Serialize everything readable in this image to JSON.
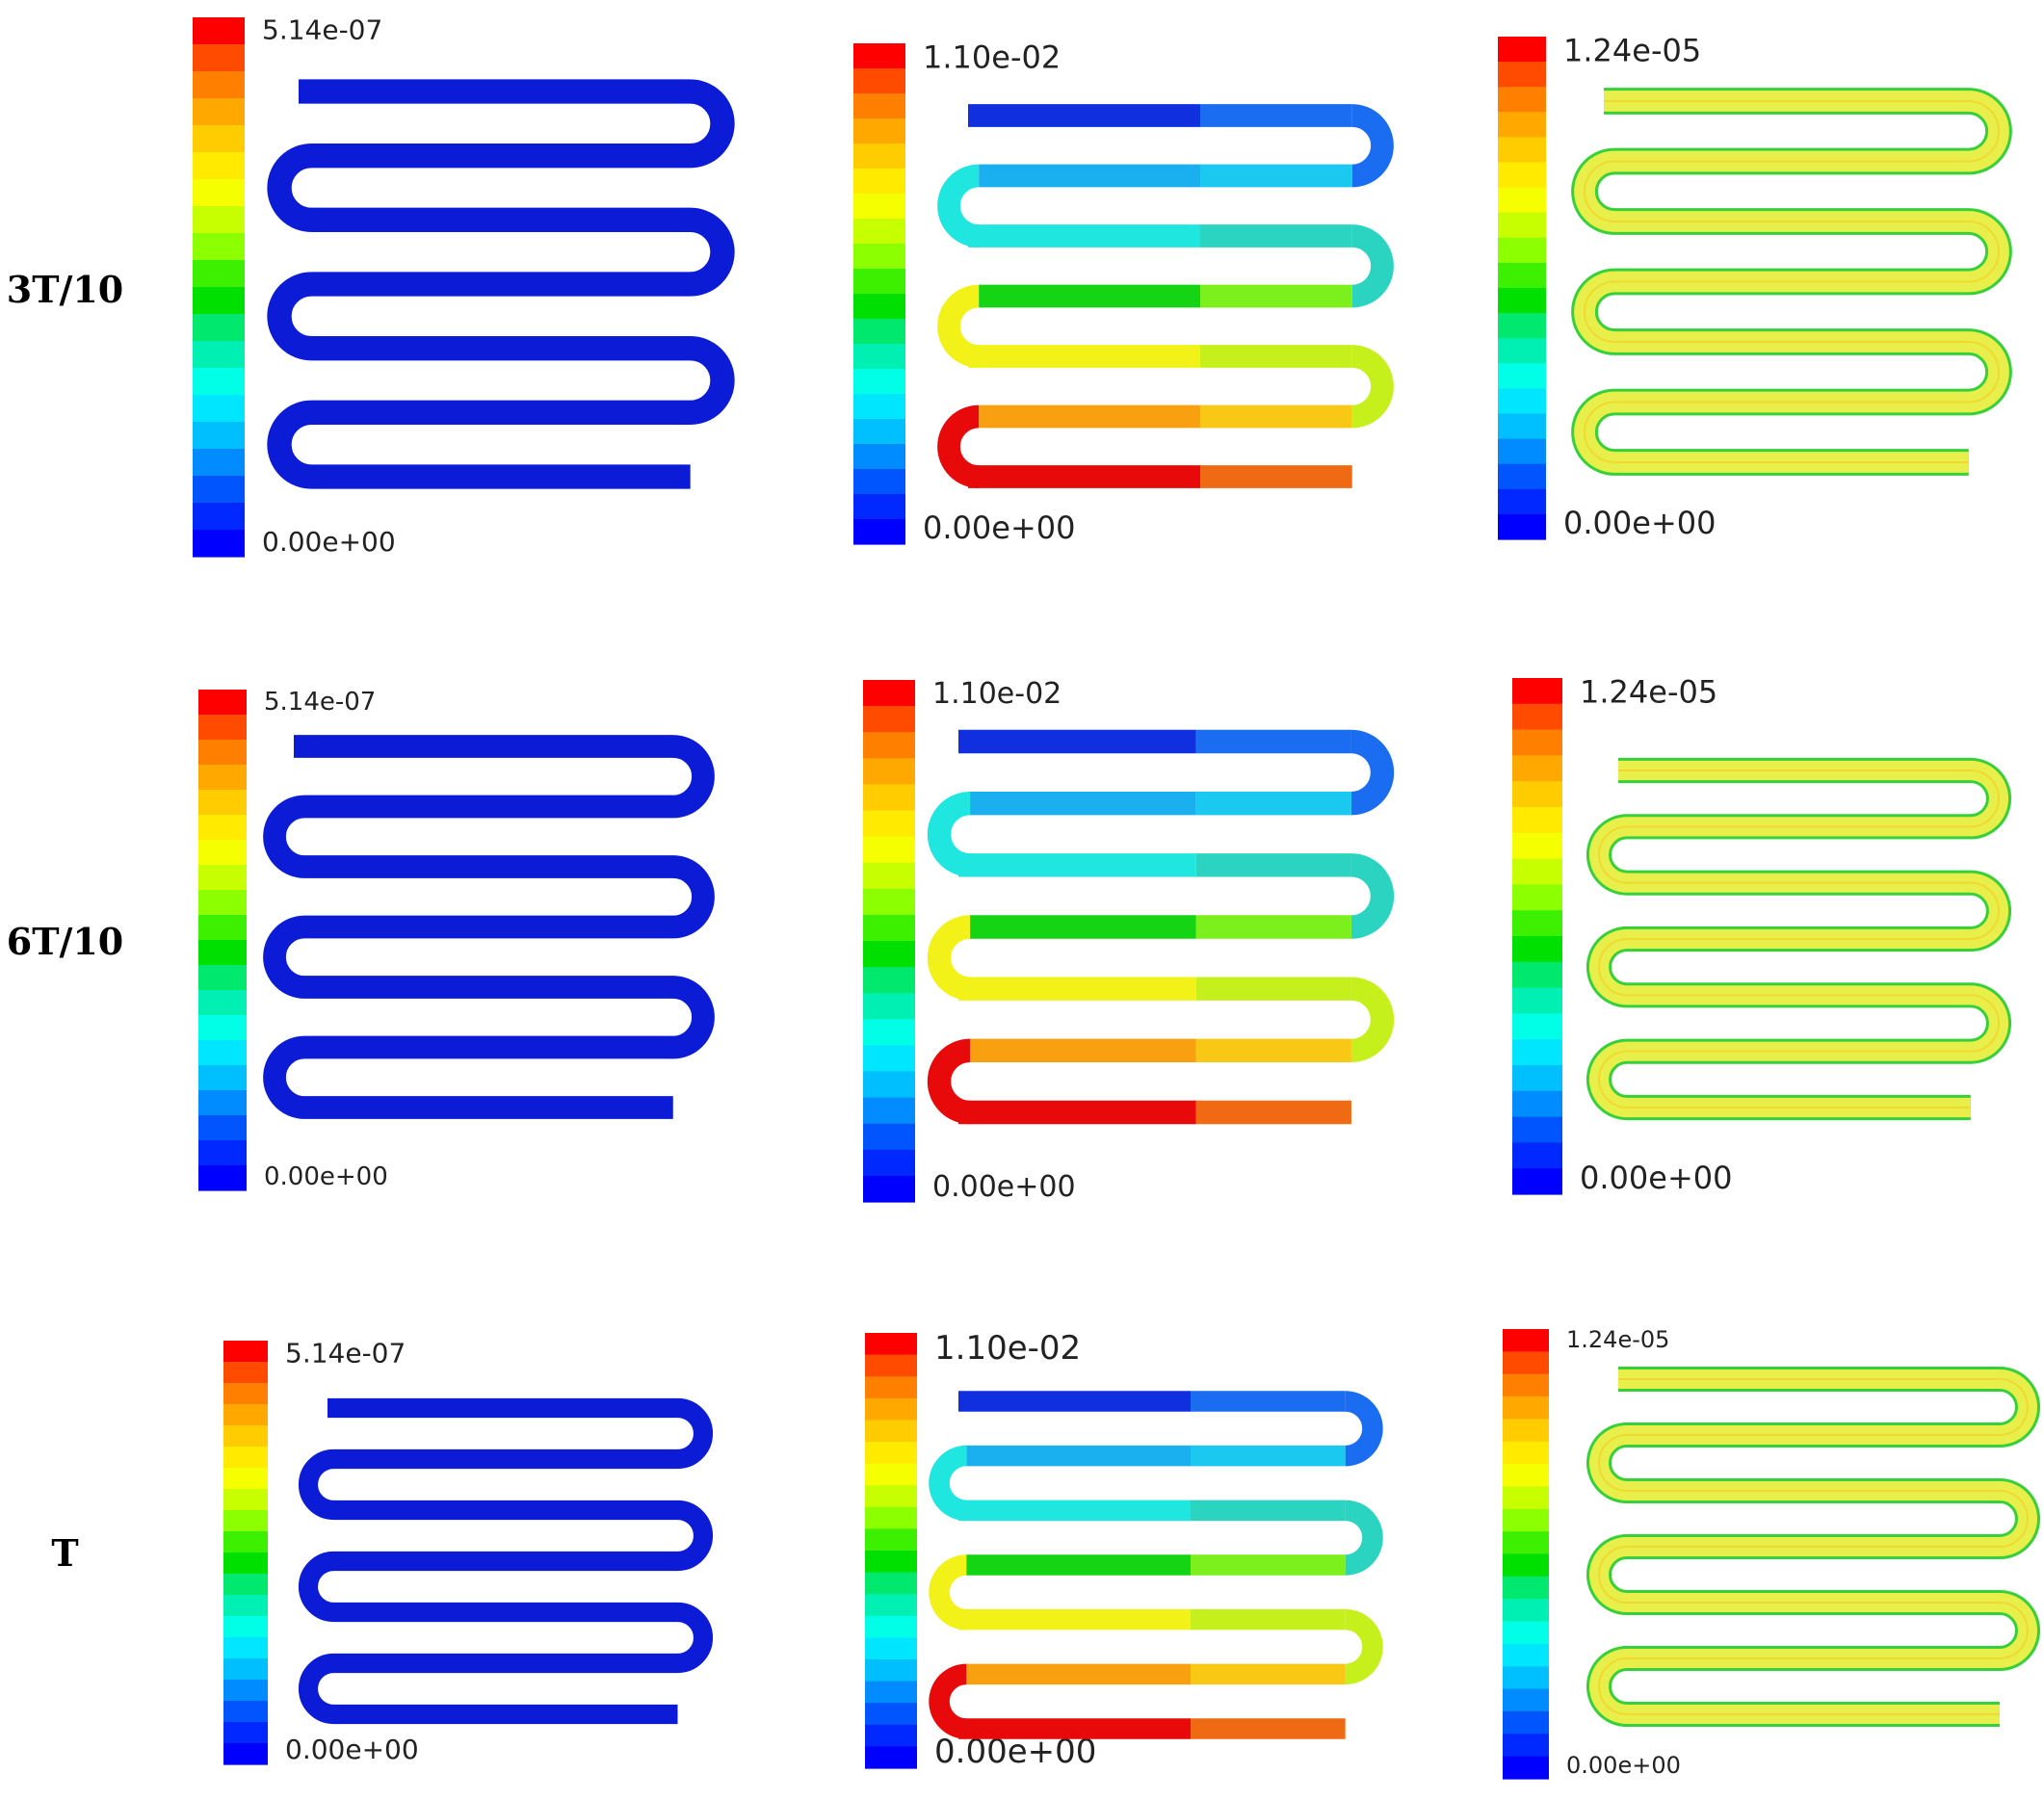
{
  "rows": [
    {
      "label": "3T/10"
    },
    {
      "label": "6T/10"
    },
    {
      "label": "T"
    }
  ],
  "columns": [
    {
      "max_label": "5.14e-07",
      "min_label": "0.00e+00",
      "pattern": "uniform"
    },
    {
      "max_label": "1.10e-02",
      "min_label": "0.00e+00",
      "pattern": "gradient"
    },
    {
      "max_label": "1.24e-05",
      "min_label": "0.00e+00",
      "pattern": "wall"
    }
  ],
  "panels": [
    [
      {
        "max": "5.14e-07",
        "min": "0.00e+00"
      },
      {
        "max": "1.10e-02",
        "min": "0.00e+00"
      },
      {
        "max": "1.24e-05",
        "min": "0.00e+00"
      }
    ],
    [
      {
        "max": "5.14e-07",
        "min": "0.00e+00"
      },
      {
        "max": "1.10e-02",
        "min": "0.00e+00"
      },
      {
        "max": "1.24e-05",
        "min": "0.00e+00"
      }
    ],
    [
      {
        "max": "5.14e-07",
        "min": "0.00e+00"
      },
      {
        "max": "1.10e-02",
        "min": "0.00e+00"
      },
      {
        "max": "1.24e-05",
        "min": "0.00e+00"
      }
    ]
  ],
  "colors": {
    "colorbar_top_to_bottom": [
      "#ff0000",
      "#ff4b00",
      "#ff7f00",
      "#ffa800",
      "#ffcc00",
      "#ffea00",
      "#f5ff00",
      "#c8ff00",
      "#8cff00",
      "#3cf000",
      "#00e000",
      "#00e86e",
      "#00f0b4",
      "#00ffe6",
      "#00e6ff",
      "#00bfff",
      "#008cff",
      "#0055ff",
      "#0028ff",
      "#0000ff"
    ],
    "uniform_channel": "#0b1bd6",
    "wall_fill": "#e8ee4a",
    "wall_edge": "#36d13a",
    "wall_center": "#ffb400",
    "gradient_rows": [
      [
        "#1030e0",
        "#1a6cf0"
      ],
      [
        "#1ab0f0",
        "#1ac8f0"
      ],
      [
        "#20e6e0",
        "#2ad4c0"
      ],
      [
        "#14d414",
        "#7cf01c"
      ],
      [
        "#f2f218",
        "#c6f01c"
      ],
      [
        "#f8a010",
        "#f8c814"
      ],
      [
        "#e80a0a",
        "#f06a14"
      ]
    ]
  }
}
